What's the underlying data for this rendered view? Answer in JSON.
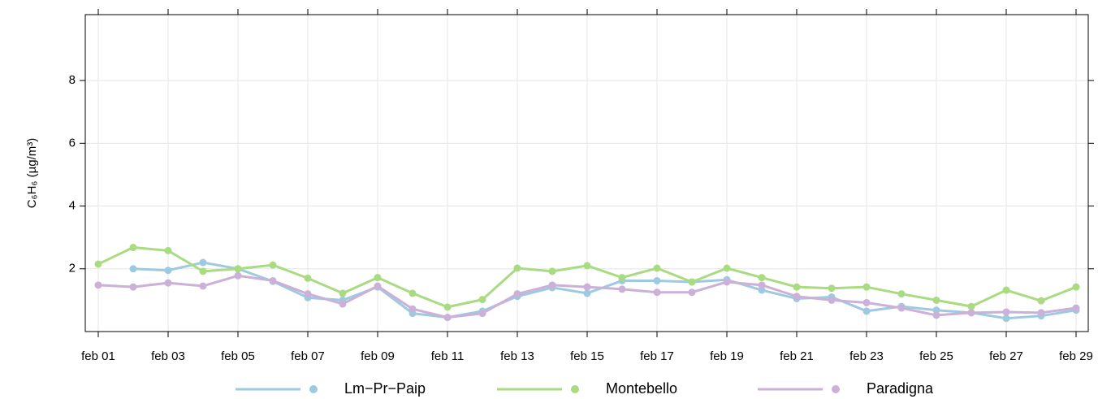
{
  "chart_data": {
    "type": "line",
    "y_label": "C₆H₆ (µg/m³)",
    "categories": [
      "feb 01",
      null,
      "feb 03",
      null,
      "feb 05",
      null,
      "feb 07",
      null,
      "feb 09",
      null,
      "feb 11",
      null,
      "feb 13",
      null,
      "feb 15",
      null,
      "feb 17",
      null,
      "feb 19",
      null,
      "feb 21",
      null,
      "feb 23",
      null,
      "feb 25",
      null,
      "feb 27",
      null,
      "feb 29"
    ],
    "series": [
      {
        "name": "Lm−Pr−Paip",
        "color": "#9ecae1",
        "values": [
          null,
          2.0,
          1.95,
          2.2,
          2.0,
          1.6,
          1.08,
          1.0,
          1.42,
          0.58,
          0.45,
          0.65,
          1.12,
          1.4,
          1.22,
          1.62,
          1.62,
          1.58,
          1.65,
          1.32,
          1.05,
          1.1,
          0.65,
          0.8,
          0.68,
          0.6,
          0.42,
          0.5,
          0.68
        ]
      },
      {
        "name": "Montebello",
        "color": "#a9db82",
        "values": [
          2.15,
          2.68,
          2.58,
          1.92,
          2.0,
          2.12,
          1.7,
          1.22,
          1.72,
          1.22,
          0.78,
          1.02,
          2.02,
          1.92,
          2.1,
          1.72,
          2.02,
          1.58,
          2.02,
          1.72,
          1.42,
          1.38,
          1.42,
          1.2,
          1.0,
          0.8,
          1.32,
          0.98,
          1.42
        ]
      },
      {
        "name": "Paradigna",
        "color": "#cbb0d8",
        "values": [
          1.48,
          1.42,
          1.55,
          1.45,
          1.78,
          1.62,
          1.2,
          0.88,
          1.45,
          0.72,
          0.45,
          0.58,
          1.2,
          1.48,
          1.42,
          1.35,
          1.25,
          1.25,
          1.58,
          1.48,
          1.12,
          1.0,
          0.92,
          0.75,
          0.52,
          0.6,
          0.62,
          0.6,
          0.75
        ]
      }
    ],
    "ylim": [
      0,
      10.1
    ],
    "yticks": [
      2,
      4,
      6,
      8
    ],
    "grid": true,
    "legend": "bottom"
  }
}
